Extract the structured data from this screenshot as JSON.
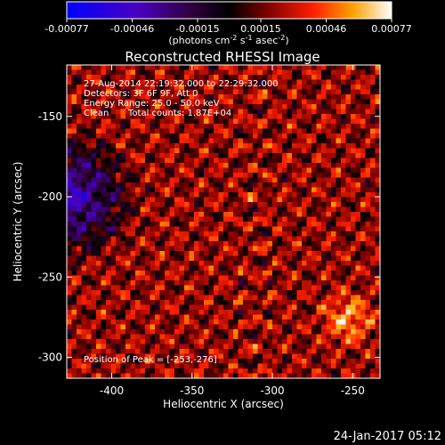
{
  "chart_data": {
    "type": "heatmap",
    "title": "Reconstructed RHESSI Image",
    "xlabel": "Heliocentric X (arcsec)",
    "ylabel": "Heliocentric Y (arcsec)",
    "xlim": [
      -428,
      -233
    ],
    "ylim": [
      -313,
      -118
    ],
    "x_ticks": [
      "-400",
      "-350",
      "-300",
      "-250"
    ],
    "x_tick_values": [
      -400,
      -350,
      -300,
      -250
    ],
    "y_ticks": [
      "-300",
      "-250",
      "-200",
      "-150"
    ],
    "y_tick_values": [
      -300,
      -250,
      -200,
      -150
    ],
    "colorbar": {
      "range": [
        -0.00077,
        0.00077
      ],
      "tick_labels": [
        "-0.00077",
        "-0.00046",
        "-0.00015",
        "0.00015",
        "0.00046",
        "0.00077"
      ],
      "tick_values": [
        -0.00077,
        -0.00046,
        -0.00015,
        0.00015,
        0.00046,
        0.00077
      ],
      "unit_pre": "(photons cm",
      "unit_sup1": "-2",
      "unit_mid1": " s",
      "unit_sup2": "-1",
      "unit_mid2": " asec",
      "unit_sup3": "-2",
      "unit_post": ")"
    },
    "annotations": {
      "line1": "27-Aug-2014 22:19:32.000 to 22:29:32.000",
      "line2": "Detectors: 3F 6F 9F, Att 0",
      "line3": "Energy Range: 25.0 - 50.0 keV",
      "line4_a": "Clean",
      "line4_b": "Total counts: 1.87E+04",
      "peak": "Position of Peak = [-253,-276]"
    },
    "peak": [
      -253,
      -276
    ]
  },
  "footer": {
    "date": "24-Jan-2017 05:12"
  }
}
